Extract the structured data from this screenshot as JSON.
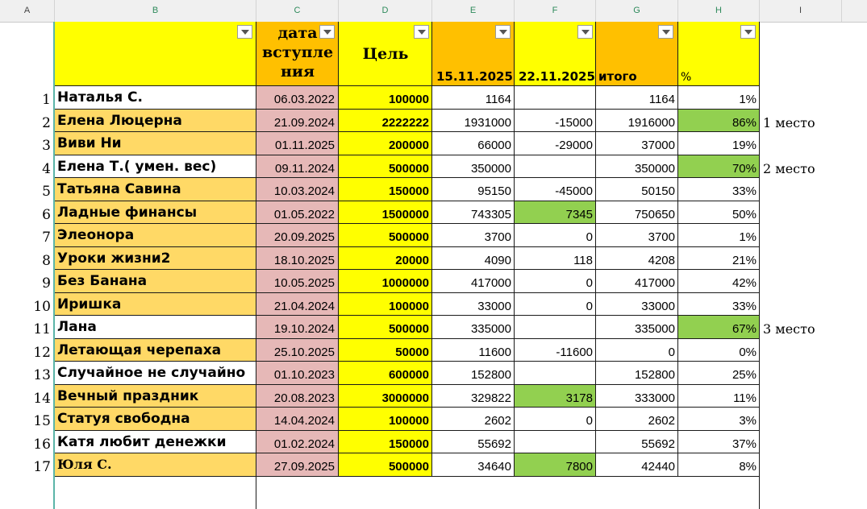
{
  "column_headers": [
    "A",
    "B",
    "C",
    "D",
    "E",
    "F",
    "G",
    "H",
    "I"
  ],
  "header": {
    "date_joined": "дата вступления",
    "date_lines": [
      "дата",
      "вступле",
      "ния"
    ],
    "goal": "Цель",
    "col_e": "15.11.2025",
    "col_f": "22.11.2025",
    "total": "итого",
    "percent": "%"
  },
  "colors": {
    "yellow": "#ffff00",
    "orange": "#ffc000",
    "name_orange": "#ffd966",
    "pink": "#e6b8b7",
    "green": "#92d050"
  },
  "rows": [
    {
      "n": "1",
      "name": "Наталья С.",
      "date": "06.03.2022",
      "goal": "100000",
      "e": "1164",
      "f": "",
      "total": "1164",
      "pct": "1%",
      "place": "",
      "name_bg": "white",
      "pct_green": false,
      "f_green": false
    },
    {
      "n": "2",
      "name": "Елена Люцерна",
      "date": "21.09.2024",
      "goal": "2222222",
      "e": "1931000",
      "f": "-15000",
      "total": "1916000",
      "pct": "86%",
      "place": "1 место",
      "name_bg": "orange",
      "pct_green": true,
      "f_green": false
    },
    {
      "n": "3",
      "name": "Виви Ни",
      "date": "01.11.2025",
      "goal": "200000",
      "e": "66000",
      "f": "-29000",
      "total": "37000",
      "pct": "19%",
      "place": "",
      "name_bg": "orange",
      "pct_green": false,
      "f_green": false
    },
    {
      "n": "4",
      "name": "Елена Т.( умен. вес)",
      "date": "09.11.2024",
      "goal": "500000",
      "e": "350000",
      "f": "",
      "total": "350000",
      "pct": "70%",
      "place": "2 место",
      "name_bg": "white",
      "pct_green": true,
      "f_green": false
    },
    {
      "n": "5",
      "name": "Татьяна Савина",
      "date": "10.03.2024",
      "goal": "150000",
      "e": "95150",
      "f": "-45000",
      "total": "50150",
      "pct": "33%",
      "place": "",
      "name_bg": "orange",
      "pct_green": false,
      "f_green": false
    },
    {
      "n": "6",
      "name": "Ладные финансы",
      "date": "01.05.2022",
      "goal": "1500000",
      "e": "743305",
      "f": "7345",
      "total": "750650",
      "pct": "50%",
      "place": "",
      "name_bg": "orange",
      "pct_green": false,
      "f_green": true
    },
    {
      "n": "7",
      "name": "Элеонора",
      "date": "20.09.2025",
      "goal": "500000",
      "e": "3700",
      "f": "0",
      "total": "3700",
      "pct": "1%",
      "place": "",
      "name_bg": "orange",
      "pct_green": false,
      "f_green": false
    },
    {
      "n": "8",
      "name": "Уроки жизни2",
      "date": "18.10.2025",
      "goal": "20000",
      "e": "4090",
      "f": "118",
      "total": "4208",
      "pct": "21%",
      "place": "",
      "name_bg": "orange",
      "pct_green": false,
      "f_green": false
    },
    {
      "n": "9",
      "name": "Без Банана",
      "date": "10.05.2025",
      "goal": "1000000",
      "e": "417000",
      "f": "0",
      "total": "417000",
      "pct": "42%",
      "place": "",
      "name_bg": "orange",
      "pct_green": false,
      "f_green": false
    },
    {
      "n": "10",
      "name": "Иришка",
      "date": "21.04.2024",
      "goal": "100000",
      "e": "33000",
      "f": "0",
      "total": "33000",
      "pct": "33%",
      "place": "",
      "name_bg": "orange",
      "pct_green": false,
      "f_green": false
    },
    {
      "n": "11",
      "name": "Лана",
      "date": "19.10.2024",
      "goal": "500000",
      "e": "335000",
      "f": "",
      "total": "335000",
      "pct": "67%",
      "place": "3 место",
      "name_bg": "white",
      "pct_green": true,
      "f_green": false
    },
    {
      "n": "12",
      "name": "Летающая черепаха",
      "date": "25.10.2025",
      "goal": "50000",
      "e": "11600",
      "f": "-11600",
      "total": "0",
      "pct": "0%",
      "place": "",
      "name_bg": "orange",
      "pct_green": false,
      "f_green": false
    },
    {
      "n": "13",
      "name": "Случайное не случайно",
      "date": "01.10.2023",
      "goal": "600000",
      "e": "152800",
      "f": "",
      "total": "152800",
      "pct": "25%",
      "place": "",
      "name_bg": "white",
      "pct_green": false,
      "f_green": false
    },
    {
      "n": "14",
      "name": "Вечный праздник",
      "date": "20.08.2023",
      "goal": "3000000",
      "e": "329822",
      "f": "3178",
      "total": "333000",
      "pct": "11%",
      "place": "",
      "name_bg": "orange",
      "pct_green": false,
      "f_green": true
    },
    {
      "n": "15",
      "name": "Статуя свободна",
      "date": "14.04.2024",
      "goal": "100000",
      "e": "2602",
      "f": "0",
      "total": "2602",
      "pct": "3%",
      "place": "",
      "name_bg": "orange",
      "pct_green": false,
      "f_green": false
    },
    {
      "n": "16",
      "name": "Катя любит денежки",
      "date": "01.02.2024",
      "goal": "150000",
      "e": "55692",
      "f": "",
      "total": "55692",
      "pct": "37%",
      "place": "",
      "name_bg": "white",
      "pct_green": false,
      "f_green": false
    },
    {
      "n": "17",
      "name": "Юля С.",
      "date": "27.09.2025",
      "goal": "500000",
      "e": "34640",
      "f": "7800",
      "total": "42440",
      "pct": "8%",
      "place": "",
      "name_bg": "orange",
      "pct_green": false,
      "f_green": true
    }
  ]
}
